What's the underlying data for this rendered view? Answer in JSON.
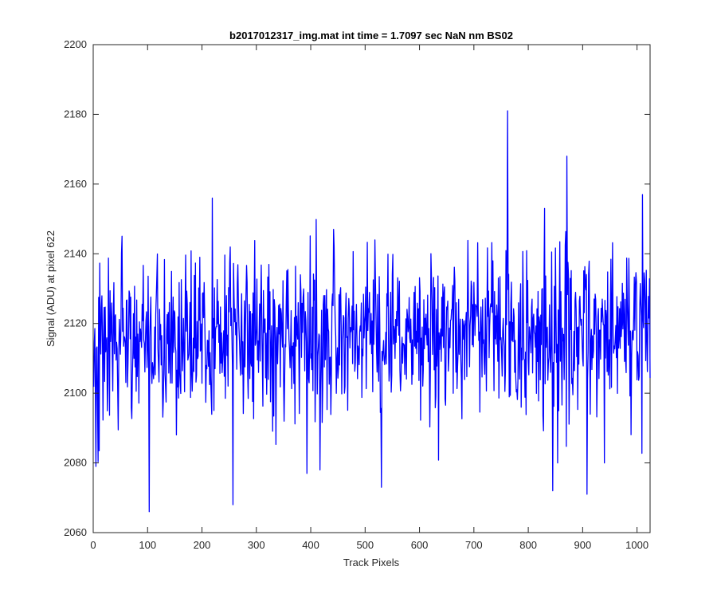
{
  "chart_data": {
    "type": "line",
    "title": "b2017012317_img.mat int time = 1.7097 sec  NaN nm BS02",
    "xlabel": "Track Pixels",
    "ylabel": "Signal (ADU) at pixel 622",
    "xlim": [
      0,
      1024
    ],
    "ylim": [
      2060,
      2200
    ],
    "xticks": [
      0,
      100,
      200,
      300,
      400,
      500,
      600,
      700,
      800,
      900,
      1000
    ],
    "yticks": [
      2060,
      2080,
      2100,
      2120,
      2140,
      2160,
      2180,
      2200
    ],
    "xtick_labels": [
      "0",
      "100",
      "200",
      "300",
      "400",
      "500",
      "600",
      "700",
      "800",
      "900",
      "1000"
    ],
    "ytick_labels": [
      "2060",
      "2080",
      "2100",
      "2120",
      "2140",
      "2160",
      "2180",
      "2200"
    ],
    "grid": false,
    "legend": false,
    "series_color": "#0000ff",
    "series": [
      {
        "x_start": 1,
        "x_step": 1,
        "n_points": 1024,
        "mean": 2117,
        "std": 12,
        "values_sample_note": "dense noise trace",
        "peaks": [
          {
            "x": 5,
            "y": 2079
          },
          {
            "x": 103,
            "y": 2066
          },
          {
            "x": 219,
            "y": 2156
          },
          {
            "x": 257,
            "y": 2068
          },
          {
            "x": 393,
            "y": 2077
          },
          {
            "x": 417,
            "y": 2078
          },
          {
            "x": 530,
            "y": 2073
          },
          {
            "x": 762,
            "y": 2181
          },
          {
            "x": 845,
            "y": 2072
          },
          {
            "x": 871,
            "y": 2168
          },
          {
            "x": 908,
            "y": 2071
          },
          {
            "x": 1010,
            "y": 2157
          }
        ]
      }
    ]
  }
}
